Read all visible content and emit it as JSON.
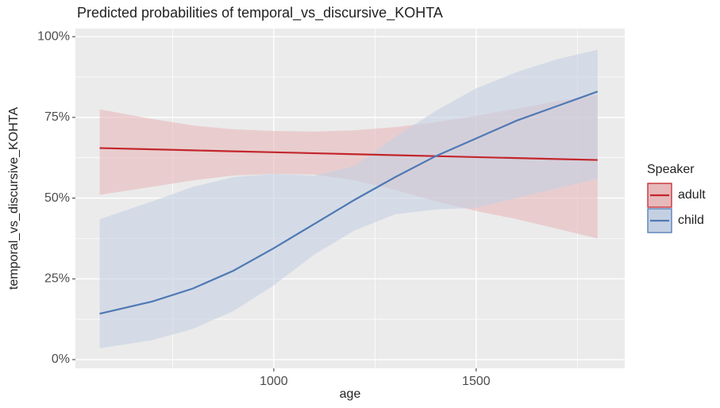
{
  "chart_data": {
    "type": "ribbon-line",
    "title": "Predicted probabilities of temporal_vs_discursive_KOHTA",
    "x_label": "age",
    "y_label": "temporal_vs_discursive_KOHTA",
    "legend_title": "Speaker",
    "legend_position": "right",
    "x": [
      570,
      700,
      800,
      900,
      1000,
      1100,
      1200,
      1300,
      1400,
      1500,
      1600,
      1700,
      1800
    ],
    "series": [
      {
        "name": "adult",
        "color": "#c3262c",
        "fill": "#e7b9bb",
        "values": [
          65.5,
          65.1,
          64.8,
          64.5,
          64.2,
          63.9,
          63.6,
          63.3,
          63,
          62.7,
          62.4,
          62.1,
          61.8
        ],
        "upper": [
          77.5,
          74.5,
          72.5,
          71.3,
          70.8,
          70.6,
          71,
          72,
          73.5,
          75.5,
          77.7,
          80,
          82
        ],
        "lower": [
          51,
          53.5,
          55.5,
          57,
          57.5,
          57.3,
          55.5,
          52.5,
          49,
          46,
          43.5,
          40.5,
          37.5
        ]
      },
      {
        "name": "child",
        "color": "#4f79b5",
        "fill": "#c4d0e2",
        "values": [
          14.2,
          18,
          22,
          27.5,
          34.5,
          42,
          49.5,
          56.5,
          63,
          68.5,
          74,
          78.5,
          83
        ],
        "upper": [
          43.5,
          49,
          53.5,
          56.5,
          57.5,
          57,
          60,
          69,
          77,
          84,
          89,
          93,
          96
        ],
        "lower": [
          3.5,
          6,
          9.5,
          15,
          23,
          32.5,
          40,
          45,
          46.5,
          47,
          50,
          53,
          56
        ]
      }
    ],
    "xlim": [
      510,
      1867
    ],
    "ylim": [
      -2.7,
      102.5
    ],
    "xticks": [
      1000,
      1500
    ],
    "x_minor_ticks": [
      750,
      1250,
      1750
    ],
    "yticks": [
      {
        "value": 0,
        "label": "0%"
      },
      {
        "value": 25,
        "label": "25%"
      },
      {
        "value": 50,
        "label": "50%"
      },
      {
        "value": 75,
        "label": "75%"
      },
      {
        "value": 100,
        "label": "100%"
      }
    ],
    "y_minor_ticks": [
      12.5,
      37.5,
      62.5,
      87.5
    ],
    "grid": true
  }
}
